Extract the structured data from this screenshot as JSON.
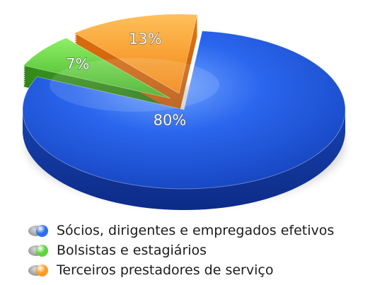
{
  "chart_data": {
    "type": "pie",
    "title": "",
    "categories": [
      "Sócios, dirigentes e empregados efetivos",
      "Bolsistas e estagiários",
      "Terceiros prestadores de serviço"
    ],
    "values": [
      80,
      7,
      13
    ],
    "labels": [
      "80%",
      "7%",
      "13%"
    ],
    "colors": [
      "#1f5fe0",
      "#5fd13c",
      "#ff9a24"
    ],
    "exploded": [
      false,
      true,
      true
    ],
    "legend_position": "bottom-left",
    "style": "3d-perspective"
  },
  "legend": {
    "items": [
      {
        "label": "Sócios, dirigentes e empregados efetivos",
        "color": "#2d6ef2"
      },
      {
        "label": "Bolsistas e estagiários",
        "color": "#5ed43a"
      },
      {
        "label": "Terceiros prestadores de serviço",
        "color": "#ff9b22"
      }
    ]
  }
}
